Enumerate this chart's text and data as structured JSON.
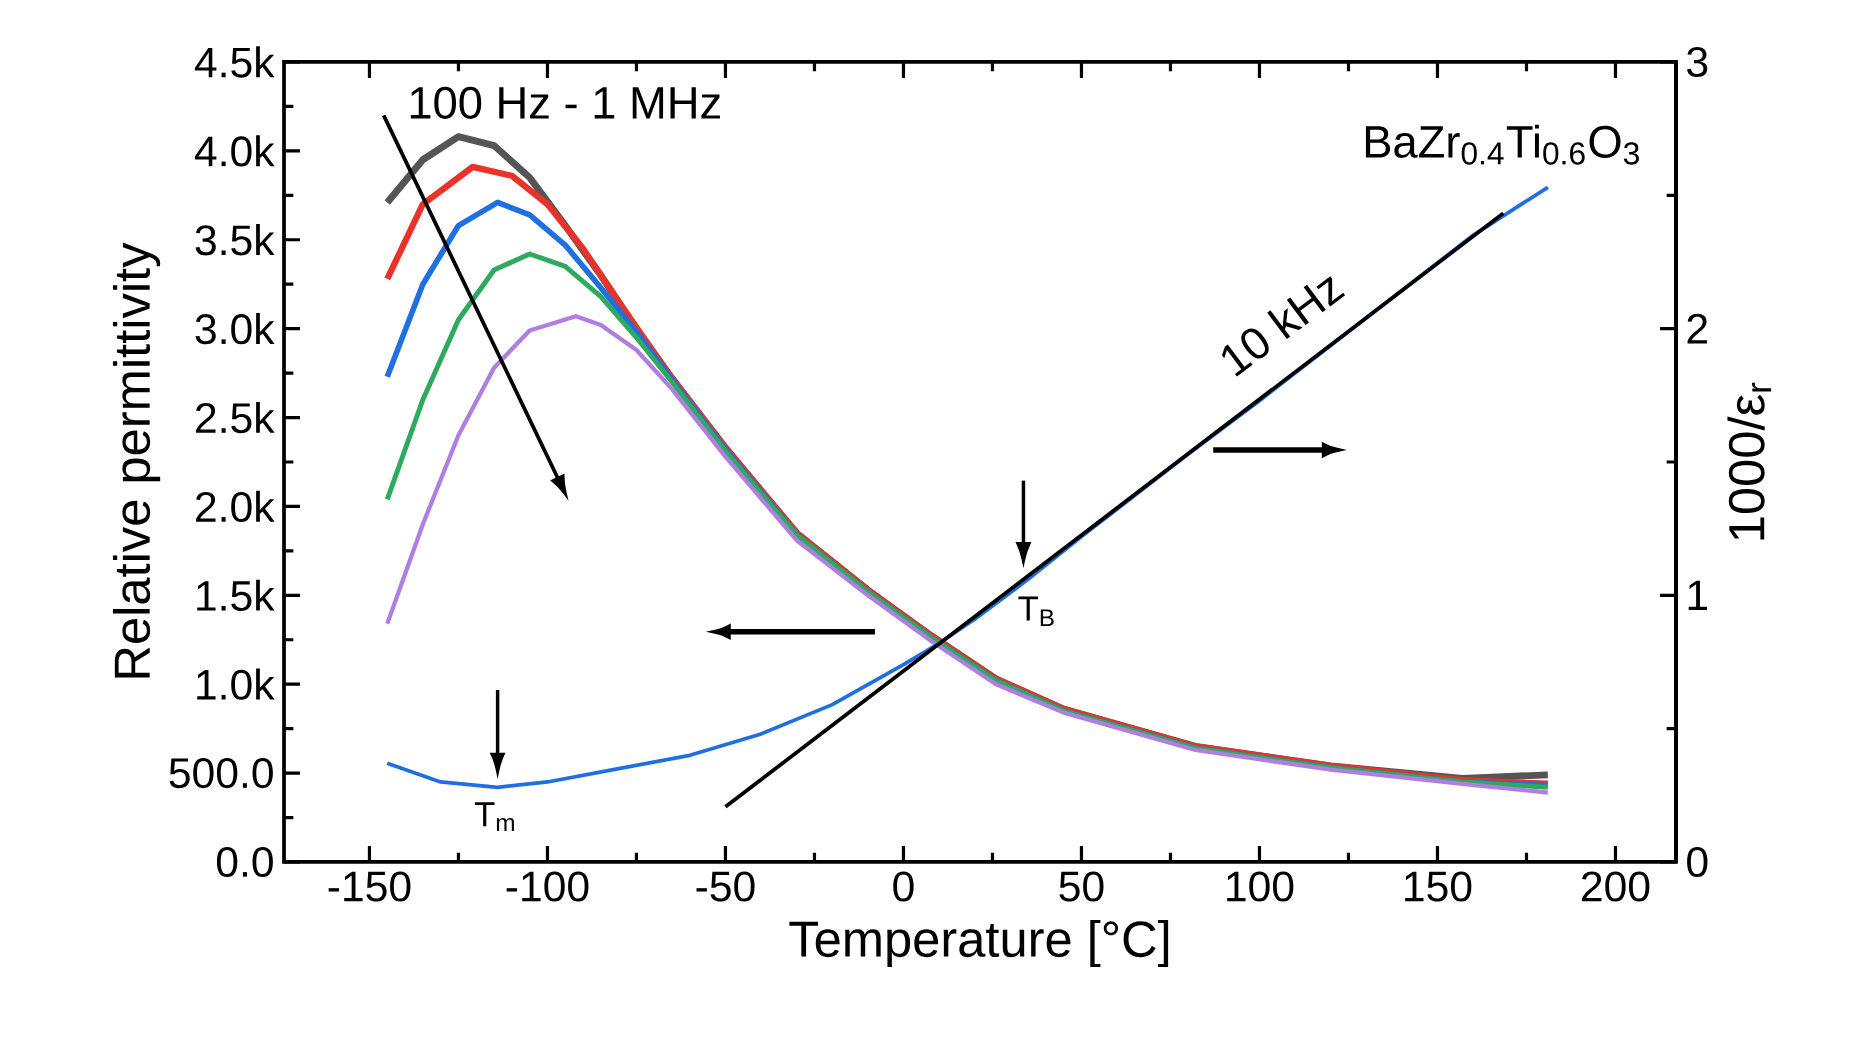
{
  "chart_data": {
    "type": "line",
    "xlabel": "Temperature [°C]",
    "ylabel": "Relative permittivity",
    "y2label": "1000/ε$_{r}$",
    "xlim": [
      -174,
      217
    ],
    "ylim": [
      0,
      4500
    ],
    "y2lim": [
      0,
      3
    ],
    "xticks": [
      -150,
      -100,
      -50,
      0,
      50,
      100,
      150,
      200,
      {
        "value": -125,
        "label": null
      },
      {
        "value": -75,
        "label": null
      },
      {
        "value": -25,
        "label": null
      },
      {
        "value": 25,
        "label": null
      },
      {
        "value": 75,
        "label": null
      },
      {
        "value": 125,
        "label": null
      },
      {
        "value": 175,
        "label": null
      }
    ],
    "yticks": [
      {
        "value": 0,
        "label": "0.0"
      },
      {
        "value": 500,
        "label": "500.0"
      },
      {
        "value": 1000,
        "label": "1.0k"
      },
      {
        "value": 1500,
        "label": "1.5k"
      },
      {
        "value": 2000,
        "label": "2.0k"
      },
      {
        "value": 2500,
        "label": "2.5k"
      },
      {
        "value": 3000,
        "label": "3.0k"
      },
      {
        "value": 3500,
        "label": "3.5k"
      },
      {
        "value": 4000,
        "label": "4.0k"
      },
      {
        "value": 4500,
        "label": "4.5k"
      },
      {
        "value": 250,
        "label": null
      },
      {
        "value": 750,
        "label": null
      },
      {
        "value": 1250,
        "label": null
      },
      {
        "value": 1750,
        "label": null
      },
      {
        "value": 2250,
        "label": null
      },
      {
        "value": 2750,
        "label": null
      },
      {
        "value": 3250,
        "label": null
      },
      {
        "value": 3750,
        "label": null
      },
      {
        "value": 4250,
        "label": null
      }
    ],
    "y2ticks": [
      0,
      1,
      2,
      3,
      {
        "value": 0.5,
        "label": null
      },
      {
        "value": 1.5,
        "label": null
      },
      {
        "value": 2.5,
        "label": null
      }
    ],
    "series": [
      {
        "color": "#555555",
        "x": [
          -145,
          -135,
          -125,
          -115,
          -105,
          -95,
          -85,
          -75,
          -65,
          -50,
          -30,
          -10,
          8,
          26,
          45,
          82,
          120,
          157,
          181
        ],
        "values": [
          3710,
          3950,
          4080,
          4030,
          3850,
          3580,
          3300,
          3000,
          2720,
          2330,
          1850,
          1530,
          1270,
          1030,
          860,
          650,
          540,
          470,
          490
        ]
      },
      {
        "color": "#e8332a",
        "x": [
          -145,
          -135,
          -121,
          -110,
          -100,
          -90,
          -80,
          -65,
          -50,
          -30,
          -10,
          8,
          26,
          45,
          82,
          120,
          157,
          181
        ],
        "values": [
          3280,
          3700,
          3910,
          3860,
          3700,
          3450,
          3150,
          2720,
          2330,
          1850,
          1530,
          1270,
          1030,
          860,
          650,
          540,
          460,
          440
        ]
      },
      {
        "color": "#1f6fe0",
        "x": [
          -145,
          -135,
          -125,
          -114,
          -105,
          -95,
          -85,
          -75,
          -65,
          -50,
          -30,
          -10,
          8,
          26,
          45,
          82,
          120,
          157,
          181
        ],
        "values": [
          2730,
          3250,
          3580,
          3710,
          3640,
          3470,
          3230,
          2980,
          2710,
          2320,
          1840,
          1520,
          1260,
          1020,
          850,
          640,
          530,
          450,
          430
        ]
      },
      {
        "color": "#2eaa5e",
        "x": [
          -145,
          -135,
          -125,
          -115,
          -105,
          -95,
          -85,
          -75,
          -65,
          -50,
          -30,
          -10,
          8,
          26,
          45,
          82,
          120,
          157,
          181
        ],
        "values": [
          2040,
          2600,
          3050,
          3330,
          3420,
          3350,
          3180,
          2950,
          2700,
          2310,
          1840,
          1520,
          1260,
          1020,
          850,
          640,
          530,
          450,
          420
        ]
      },
      {
        "color": "#b07ee0",
        "x": [
          -145,
          -135,
          -125,
          -115,
          -105,
          -92,
          -85,
          -75,
          -65,
          -50,
          -30,
          -10,
          8,
          26,
          45,
          82,
          120,
          157,
          181
        ],
        "values": [
          1340,
          1900,
          2400,
          2780,
          2990,
          3070,
          3020,
          2880,
          2660,
          2280,
          1810,
          1500,
          1240,
          1000,
          840,
          630,
          520,
          440,
          390
        ]
      },
      {
        "name": "10 kHz",
        "color": "#1f6fe0",
        "axis": "y2",
        "x": [
          -145,
          -130,
          -114,
          -100,
          -80,
          -60,
          -40,
          -20,
          0,
          10,
          20,
          35,
          50,
          80,
          100,
          130,
          160,
          181
        ],
        "values": [
          0.37,
          0.3,
          0.28,
          0.3,
          0.35,
          0.4,
          0.48,
          0.59,
          0.74,
          0.82,
          0.91,
          1.06,
          1.22,
          1.53,
          1.73,
          2.04,
          2.35,
          2.53
        ]
      },
      {
        "color": "#000000",
        "axis": "y2",
        "x": [
          -50,
          168.5
        ],
        "values": [
          0.207,
          2.433
        ]
      }
    ],
    "annotations": [
      "100 Hz - 1 MHz",
      "BaZr$_{0.4}$Ti$_{0.6}$O$_{3}$",
      "T$_{m}$",
      "T$_{B}$"
    ]
  }
}
